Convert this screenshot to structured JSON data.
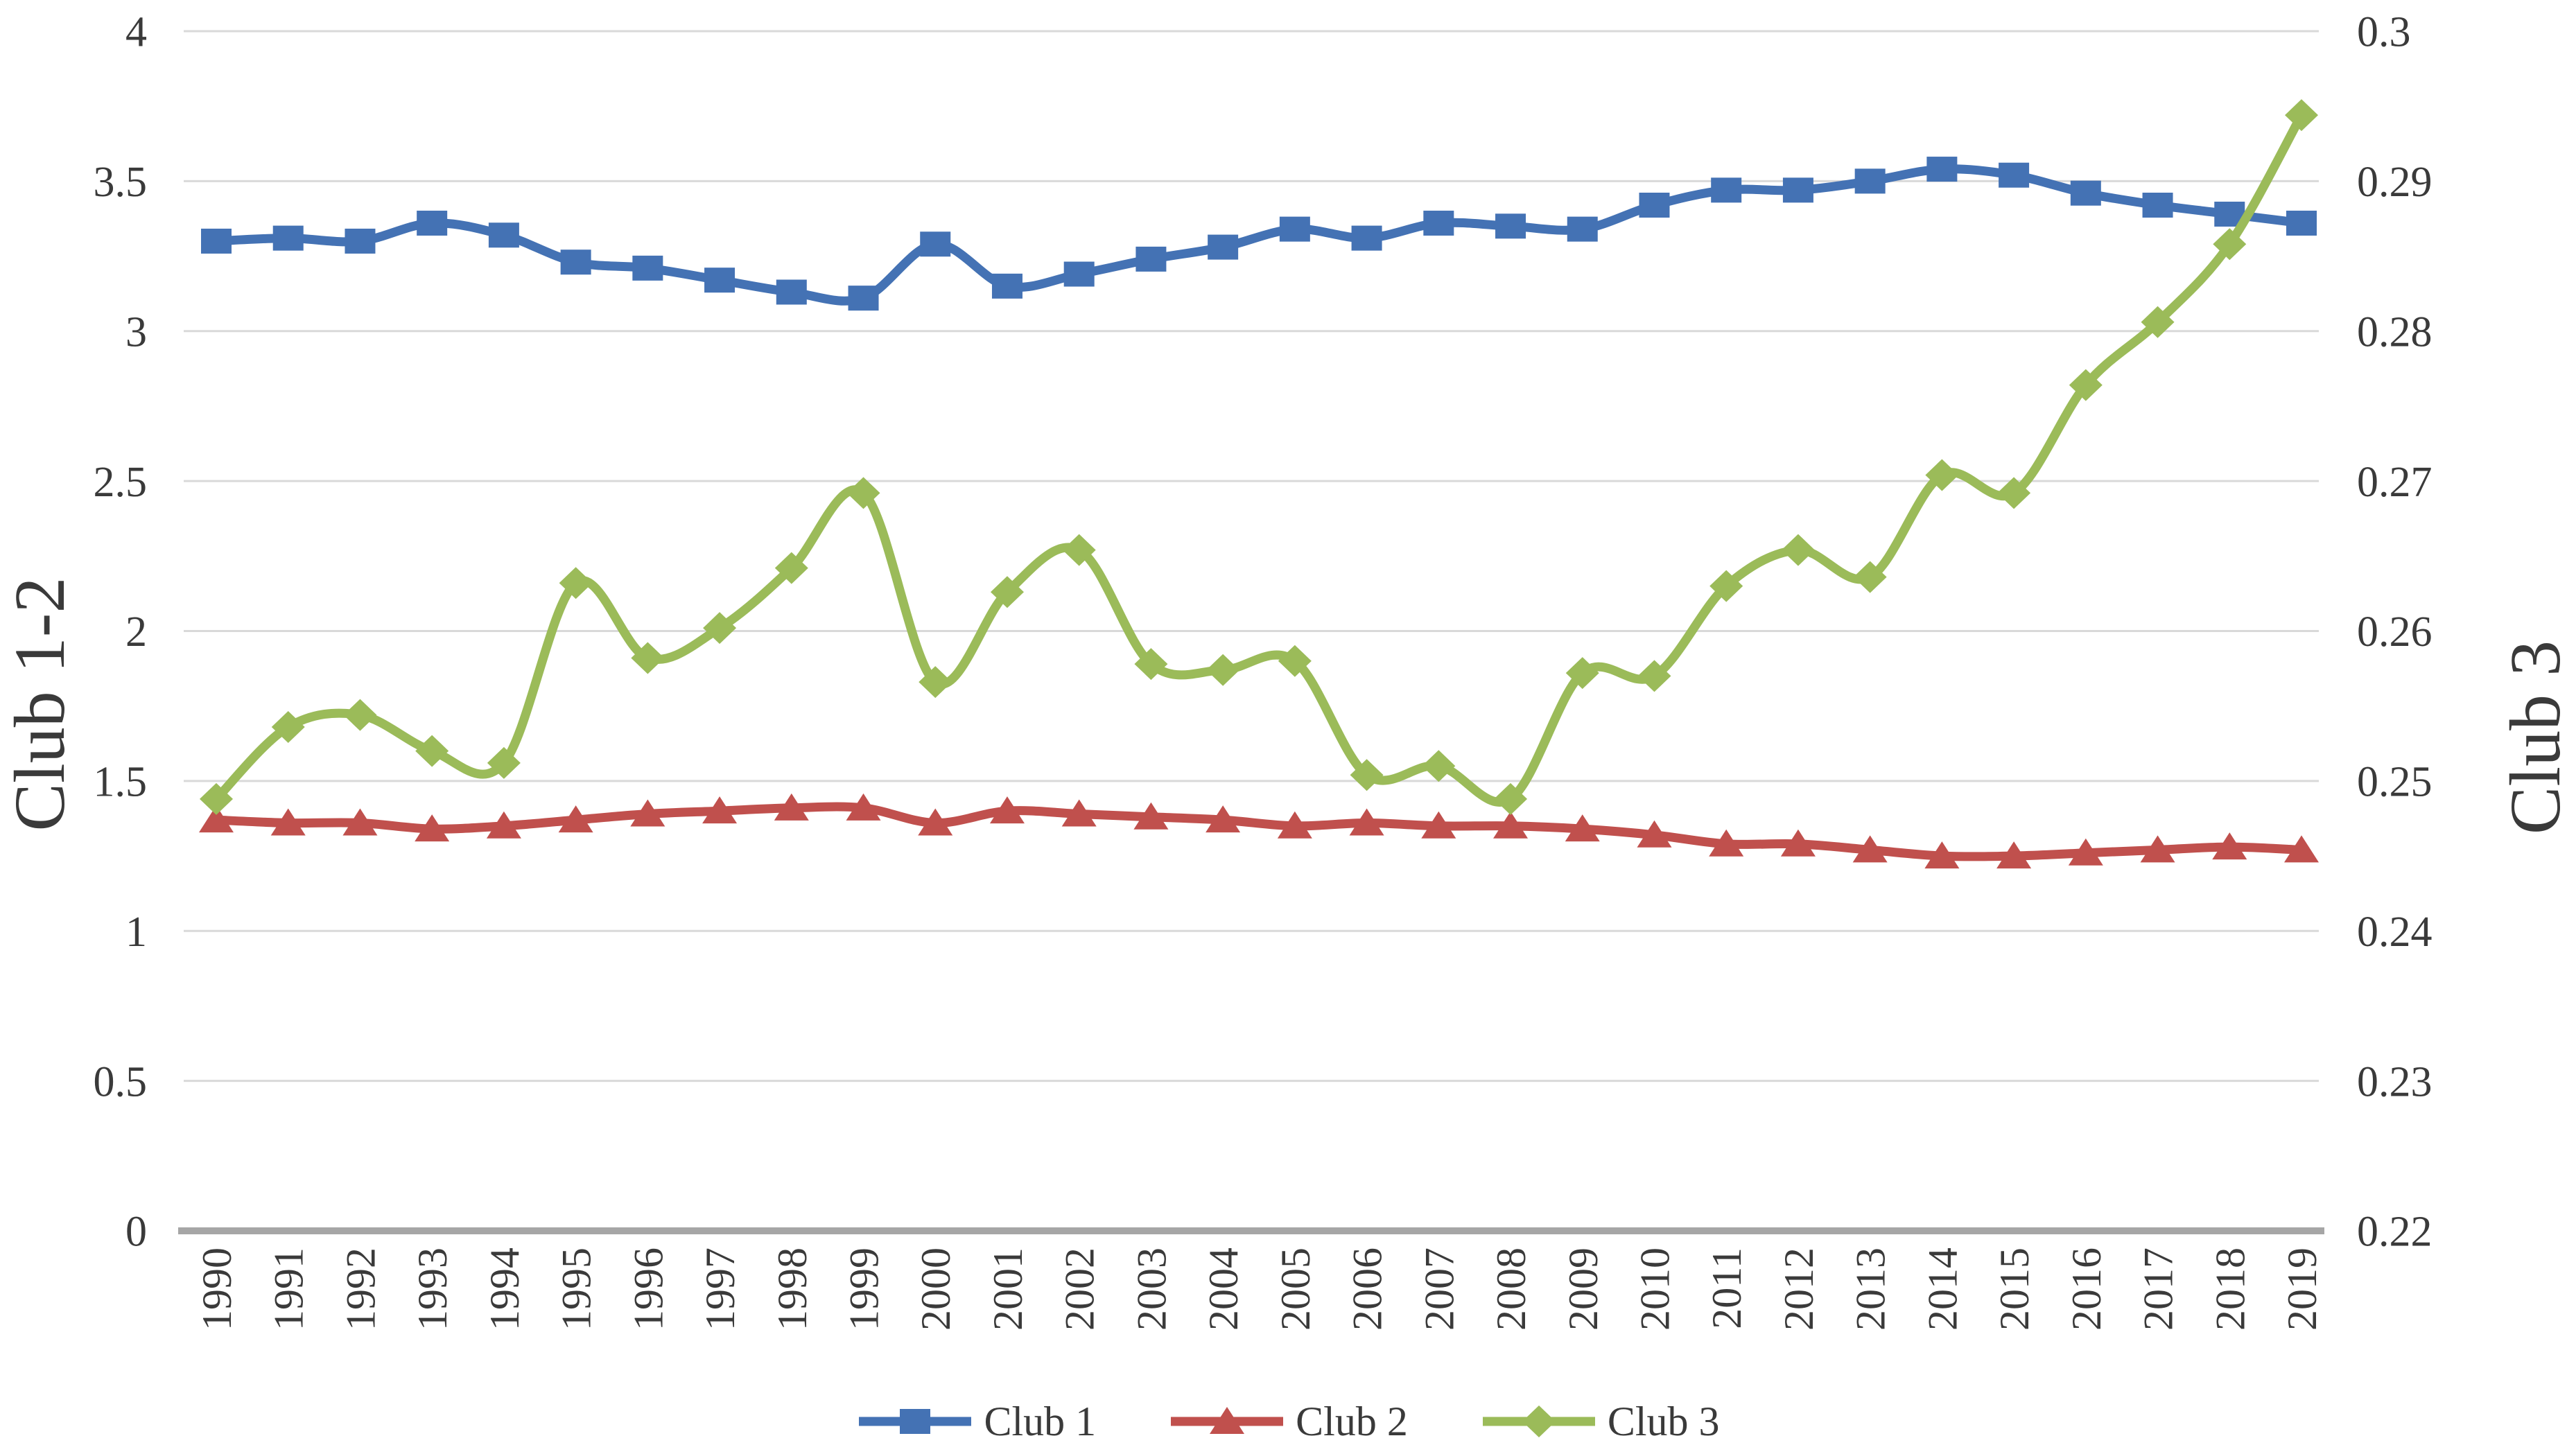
{
  "chart_data": {
    "type": "line",
    "title": "",
    "categories": [
      "1990",
      "1991",
      "1992",
      "1993",
      "1994",
      "1995",
      "1996",
      "1997",
      "1998",
      "1999",
      "2000",
      "2001",
      "2002",
      "2003",
      "2004",
      "2005",
      "2006",
      "2007",
      "2008",
      "2009",
      "2010",
      "2011",
      "2012",
      "2013",
      "2014",
      "2015",
      "2016",
      "2017",
      "2018",
      "2019"
    ],
    "series": [
      {
        "name": "Club 1",
        "axis": "left",
        "marker": "square",
        "color": "#4472B4",
        "values": [
          3.3,
          3.31,
          3.3,
          3.36,
          3.32,
          3.23,
          3.21,
          3.17,
          3.13,
          3.11,
          3.29,
          3.15,
          3.19,
          3.24,
          3.28,
          3.34,
          3.31,
          3.36,
          3.35,
          3.34,
          3.42,
          3.47,
          3.47,
          3.5,
          3.54,
          3.52,
          3.46,
          3.42,
          3.39,
          3.36
        ]
      },
      {
        "name": "Club 2",
        "axis": "left",
        "marker": "triangle",
        "color": "#C0504D",
        "values": [
          1.37,
          1.36,
          1.36,
          1.34,
          1.35,
          1.37,
          1.39,
          1.4,
          1.41,
          1.41,
          1.36,
          1.4,
          1.39,
          1.38,
          1.37,
          1.35,
          1.36,
          1.35,
          1.35,
          1.34,
          1.32,
          1.29,
          1.29,
          1.27,
          1.25,
          1.25,
          1.26,
          1.27,
          1.28,
          1.27
        ]
      },
      {
        "name": "Club 3",
        "axis": "right",
        "marker": "diamond",
        "color": "#9BBB59",
        "values": [
          0.2488,
          0.2536,
          0.2544,
          0.252,
          0.2512,
          0.2632,
          0.2582,
          0.2602,
          0.2642,
          0.2692,
          0.2566,
          0.2626,
          0.2654,
          0.2578,
          0.2574,
          0.258,
          0.2504,
          0.251,
          0.2488,
          0.2572,
          0.257,
          0.263,
          0.2654,
          0.2636,
          0.2704,
          0.2692,
          0.2764,
          0.2806,
          0.2858,
          0.2944
        ]
      }
    ],
    "left_axis": {
      "title": "Club 1-2",
      "min": 0,
      "max": 4,
      "step": 0.5,
      "tick_labels": [
        "0",
        "0.5",
        "1",
        "1.5",
        "2",
        "2.5",
        "3",
        "3.5",
        "4"
      ]
    },
    "right_axis": {
      "title": "Club 3",
      "min": 0.22,
      "max": 0.3,
      "step": 0.01,
      "tick_labels": [
        "0.22",
        "0.23",
        "0.24",
        "0.25",
        "0.26",
        "0.27",
        "0.28",
        "0.29",
        "0.3"
      ]
    },
    "legend": [
      "Club 1",
      "Club 2",
      "Club 3"
    ],
    "legend_position": "bottom",
    "grid": true,
    "xlabel": "",
    "ylabel_left": "Club 1-2",
    "ylabel_right": "Club 3"
  },
  "style": {
    "grid_color": "#D9D9D9",
    "axis_line_color": "#A6A6A6",
    "tick_color": "#3A3A3A",
    "background": "#FFFFFF",
    "series_colors": {
      "club1": "#4472B4",
      "club2": "#C0504D",
      "club3": "#9BBB59"
    }
  }
}
